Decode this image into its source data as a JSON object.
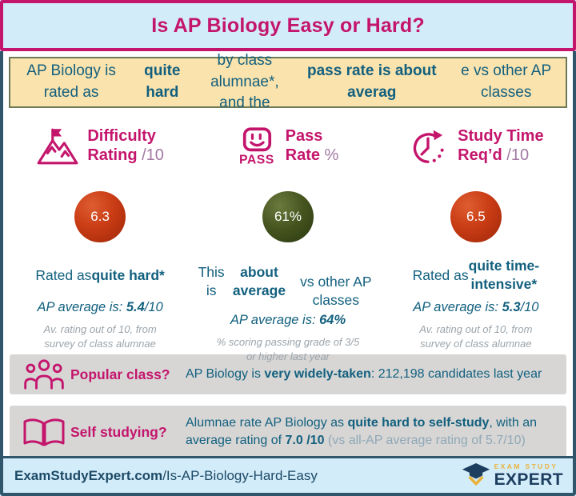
{
  "header": {
    "title": "Is AP Biology Easy or Hard?"
  },
  "banner": {
    "segments": [
      {
        "t": "AP Biology is rated as ",
        "s": "r"
      },
      {
        "t": "quite hard",
        "s": "b"
      },
      {
        "t": " by class alumnae*,\nand the ",
        "s": "r"
      },
      {
        "t": "pass rate is about averag",
        "s": "b"
      },
      {
        "t": "e vs other AP classes",
        "s": "r"
      }
    ]
  },
  "columns": [
    {
      "icon": "mountain-flag-icon",
      "heading": [
        {
          "t": "Difficulty\nRating ",
          "s": "b"
        },
        {
          "t": "/10",
          "s": "m"
        }
      ],
      "score": "6.3",
      "badge_color": "#c93c15",
      "rated": [
        {
          "t": "Rated as ",
          "s": "r"
        },
        {
          "t": "quite hard*",
          "s": "b"
        }
      ],
      "average": [
        {
          "t": "AP average is: ",
          "s": "i"
        },
        {
          "t": "5.4",
          "s": "bi"
        },
        {
          "t": "/10",
          "s": "i"
        }
      ],
      "note": "Av. rating out of 10, from\nsurvey of class alumnae"
    },
    {
      "icon": "pass-stamp-icon",
      "heading": [
        {
          "t": "Pass\nRate ",
          "s": "b"
        },
        {
          "t": "%",
          "s": "m"
        }
      ],
      "score": "61%",
      "badge_color": "#44531e",
      "rated": [
        {
          "t": "This is ",
          "s": "r"
        },
        {
          "t": "about average",
          "s": "b"
        },
        {
          "t": "\nvs other AP classes",
          "s": "r"
        }
      ],
      "average": [
        {
          "t": "AP average is: ",
          "s": "i"
        },
        {
          "t": "64%",
          "s": "bi"
        }
      ],
      "note": "% scoring passing grade of 3/5\nor higher last year"
    },
    {
      "icon": "clock-arrow-icon",
      "heading": [
        {
          "t": "Study Time\nReq’d ",
          "s": "b"
        },
        {
          "t": "/10",
          "s": "m"
        }
      ],
      "score": "6.5",
      "badge_color": "#c93c15",
      "rated": [
        {
          "t": "Rated as ",
          "s": "r"
        },
        {
          "t": "quite time-\nintensive*",
          "s": "b"
        }
      ],
      "average": [
        {
          "t": "AP average is: ",
          "s": "i"
        },
        {
          "t": "5.3",
          "s": "bi"
        },
        {
          "t": "/10",
          "s": "i"
        }
      ],
      "note": "Av. rating out of 10, from\nsurvey of class alumnae"
    }
  ],
  "bars": [
    {
      "icon": "people-icon",
      "label": "Popular class?",
      "text": [
        {
          "t": "AP Biology is ",
          "s": "r"
        },
        {
          "t": "very widely-taken",
          "s": "b"
        },
        {
          "t": ": 212,198 candidates last year",
          "s": "r"
        }
      ]
    },
    {
      "icon": "open-book-icon",
      "label": "Self studying?",
      "text": [
        {
          "t": "Alumnae rate AP Biology as ",
          "s": "r"
        },
        {
          "t": "quite hard to self-study",
          "s": "b"
        },
        {
          "t": ", with an\naverage rating of ",
          "s": "r"
        },
        {
          "t": "7.0 /10",
          "s": "b"
        },
        {
          "t": " (vs all-AP average rating of 5.7/10)",
          "s": "g"
        }
      ]
    }
  ],
  "footer": {
    "link": [
      {
        "t": "ExamStudyExpert.com",
        "s": "b"
      },
      {
        "t": "/Is-AP-Biology-Hard-Easy",
        "s": "r"
      }
    ],
    "logo_top": "EXAM STUDY",
    "logo_bottom": "EXPERT"
  },
  "colors": {
    "magenta": "#c4156c",
    "mauve": "#a379a3",
    "teal_text": "#12607e",
    "banner_bg": "#fbe3ae",
    "banner_border": "#6d7a55",
    "red_badge": "#c93c15",
    "green_badge": "#44531e",
    "bar_gray": "#d7d6d5",
    "light_blue": "#d3ecfa",
    "slate_border": "#2f566b",
    "navy": "#1d3e5f",
    "gold": "#e9b23b",
    "note_gray": "#9ba4ab"
  }
}
